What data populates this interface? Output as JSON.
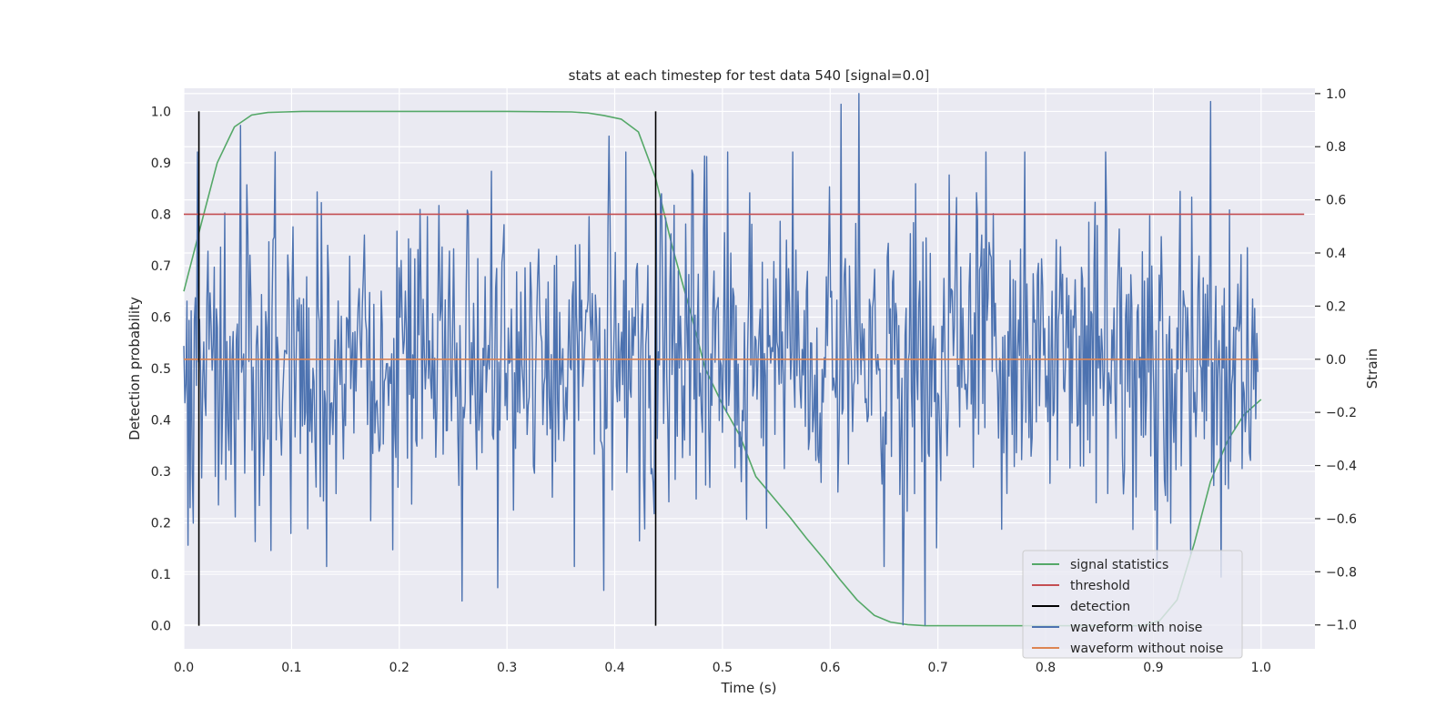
{
  "chart_data": {
    "type": "line",
    "title": "stats at each timestep for test data 540 [signal=0.0]",
    "xlabel": "Time (s)",
    "ylabel": "Detection probability",
    "y2label": "Strain",
    "xlim": [
      0.0,
      1.05
    ],
    "ylim": [
      -0.045,
      1.045
    ],
    "y2lim": [
      -1.09,
      1.02
    ],
    "xticks": [
      "0.0",
      "0.1",
      "0.2",
      "0.3",
      "0.4",
      "0.5",
      "0.6",
      "0.7",
      "0.8",
      "0.9",
      "1.0"
    ],
    "yticks": [
      "0.0",
      "0.1",
      "0.2",
      "0.3",
      "0.4",
      "0.5",
      "0.6",
      "0.7",
      "0.8",
      "0.9",
      "1.0"
    ],
    "y2ticks": [
      "−1.0",
      "−0.8",
      "−0.6",
      "−0.4",
      "−0.2",
      "0.0",
      "0.2",
      "0.4",
      "0.6",
      "0.8",
      "1.0"
    ],
    "grid": true,
    "legend_position": "lower-right",
    "legend": [
      {
        "label": "signal statistics",
        "color": "#55a868"
      },
      {
        "label": "threshold",
        "color": "#c44e52"
      },
      {
        "label": "detection",
        "color": "#000000"
      },
      {
        "label": "waveform with noise",
        "color": "#4c72b0"
      },
      {
        "label": "waveform without noise",
        "color": "#dd8452"
      }
    ],
    "series": [
      {
        "name": "signal statistics",
        "axis": "left",
        "color": "#55a868",
        "x": [
          0.0,
          0.016,
          0.031,
          0.047,
          0.063,
          0.078,
          0.094,
          0.11,
          0.2,
          0.3,
          0.36,
          0.375,
          0.39,
          0.406,
          0.422,
          0.438,
          0.453,
          0.469,
          0.484,
          0.5,
          0.516,
          0.531,
          0.547,
          0.563,
          0.578,
          0.594,
          0.609,
          0.625,
          0.641,
          0.656,
          0.672,
          0.688,
          0.8,
          0.875,
          0.89,
          0.906,
          0.922,
          0.938,
          0.953,
          0.969,
          0.984,
          1.0
        ],
        "y": [
          0.65,
          0.78,
          0.9,
          0.97,
          0.993,
          0.998,
          0.999,
          1.0,
          1.0,
          1.0,
          0.999,
          0.997,
          0.992,
          0.985,
          0.96,
          0.87,
          0.74,
          0.62,
          0.5,
          0.43,
          0.37,
          0.29,
          0.25,
          0.21,
          0.17,
          0.13,
          0.09,
          0.05,
          0.02,
          0.007,
          0.002,
          0.0,
          0.0,
          0.0,
          0.0,
          0.01,
          0.05,
          0.16,
          0.28,
          0.36,
          0.41,
          0.44
        ]
      },
      {
        "name": "threshold",
        "axis": "left",
        "color": "#c44e52",
        "x": [
          0.0,
          1.04
        ],
        "y": [
          0.8,
          0.8
        ]
      },
      {
        "name": "waveform with noise",
        "axis": "right",
        "color": "#4c72b0",
        "x_start": 0.0,
        "x_end": 0.997,
        "n_points": 1024,
        "seed": 540,
        "stdev": 0.3,
        "peaks": [
          [
            0.004,
            -0.7
          ],
          [
            0.053,
            0.88
          ],
          [
            0.081,
            -0.72
          ],
          [
            0.258,
            -0.91
          ],
          [
            0.291,
            -0.86
          ],
          [
            0.39,
            -0.87
          ],
          [
            0.395,
            0.84
          ],
          [
            0.505,
            0.78
          ],
          [
            0.61,
            0.96
          ],
          [
            0.627,
            1.0
          ],
          [
            0.668,
            -1.0
          ],
          [
            0.688,
            -1.0
          ],
          [
            0.856,
            0.78
          ],
          [
            0.953,
            0.97
          ],
          [
            0.963,
            -0.82
          ]
        ]
      },
      {
        "name": "waveform without noise",
        "axis": "right",
        "color": "#dd8452",
        "x": [
          0.0,
          0.997
        ],
        "y": [
          0.0,
          0.0
        ]
      }
    ],
    "detections": [
      {
        "x": 0.014,
        "y_range": [
          0.0,
          1.0
        ]
      },
      {
        "x": 0.438,
        "y_range": [
          0.0,
          1.0
        ]
      }
    ]
  }
}
